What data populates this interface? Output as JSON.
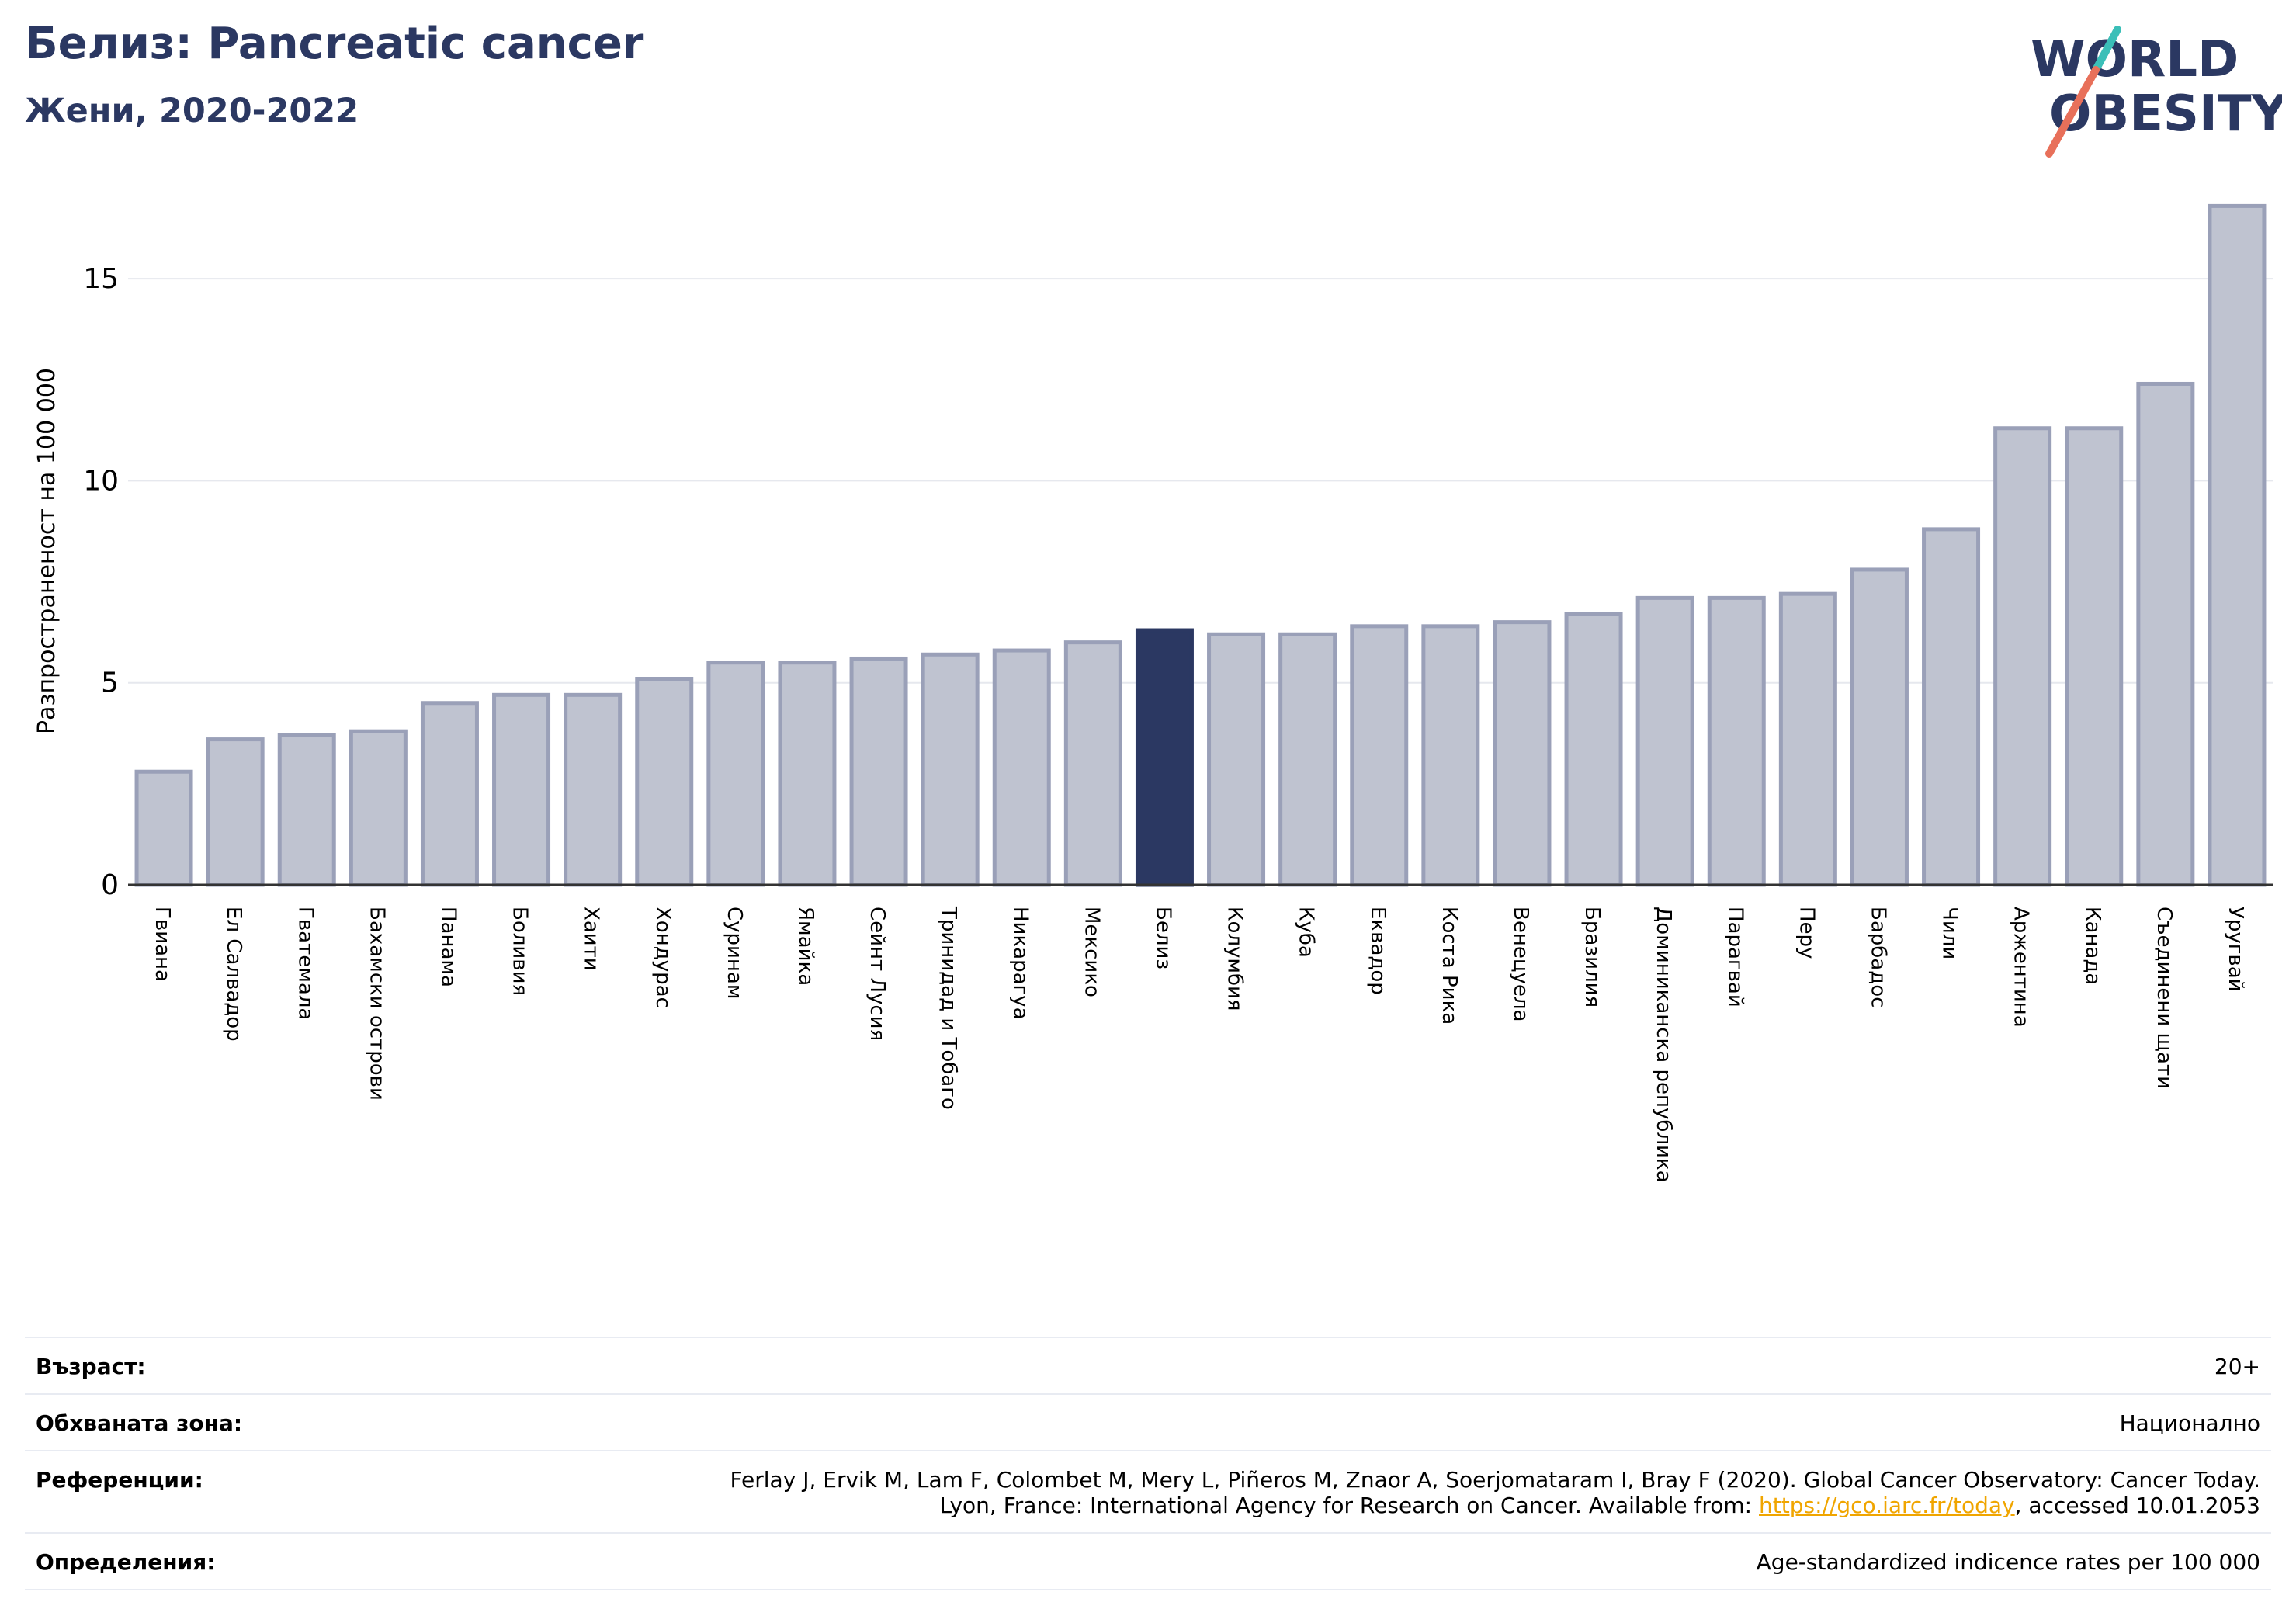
{
  "header": {
    "title": "Белиз: Pancreatic cancer",
    "subtitle": "Жени, 2020-2022"
  },
  "logo": {
    "line1": "WORLD",
    "line2": "OBESITY",
    "colors": {
      "text": "#2b3862",
      "slash_teal": "#3bbfb8",
      "slash_coral": "#e8705a"
    }
  },
  "chart_data": {
    "type": "bar",
    "title": "",
    "xlabel": "",
    "ylabel": "Разпространеност  на 100 000",
    "ylim": [
      0,
      17
    ],
    "yticks": [
      0,
      5,
      10,
      15
    ],
    "grid": true,
    "highlight": "Белиз",
    "colors": {
      "bar": "#bfc3d0",
      "bar_edge": "#9aa0b8",
      "highlight": "#2b3862",
      "grid": "#e6e8ee"
    },
    "categories": [
      "Гвиана",
      "Ел Салвадор",
      "Гватемала",
      "Бахамски острови",
      "Панама",
      "Боливия",
      "Хаити",
      "Хондурас",
      "Суринам",
      "Ямайка",
      "Сейнт Лусия",
      "Тринидад и Тобаго",
      "Никарагуа",
      "Мексико",
      "Белиз",
      "Колумбия",
      "Куба",
      "Еквадор",
      "Коста Рика",
      "Венецуела",
      "Бразилия",
      "Доминиканска република",
      "Парагвай",
      "Перу",
      "Барбадос",
      "Чили",
      "Аржентина",
      "Канада",
      "Съединени щати",
      "Уругвай"
    ],
    "values": [
      2.8,
      3.6,
      3.7,
      3.8,
      4.5,
      4.7,
      4.7,
      5.1,
      5.5,
      5.5,
      5.6,
      5.7,
      5.8,
      6.0,
      6.3,
      6.2,
      6.2,
      6.4,
      6.4,
      6.5,
      6.7,
      7.1,
      7.1,
      7.2,
      7.8,
      8.8,
      11.3,
      11.3,
      12.4,
      16.8
    ]
  },
  "info": {
    "age_label": "Възраст:",
    "age_value": "20+",
    "area_label": "Обхваната зона:",
    "area_value": "Национално",
    "refs_label": "Референции:",
    "refs_line1": "Ferlay J, Ervik M, Lam F, Colombet M, Mery L, Piñeros M, Znaor A, Soerjomataram I, Bray F (2020). Global Cancer Observatory: Cancer Today.",
    "refs_line2_pre": "Lyon, France: International Agency for Research on Cancer. Available from: ",
    "refs_link": "https://gco.iarc.fr/today",
    "refs_line2_post": ", accessed 10.01.2053",
    "defs_label": "Определения:",
    "defs_value": "Age-standardized indicence rates per 100 000"
  }
}
